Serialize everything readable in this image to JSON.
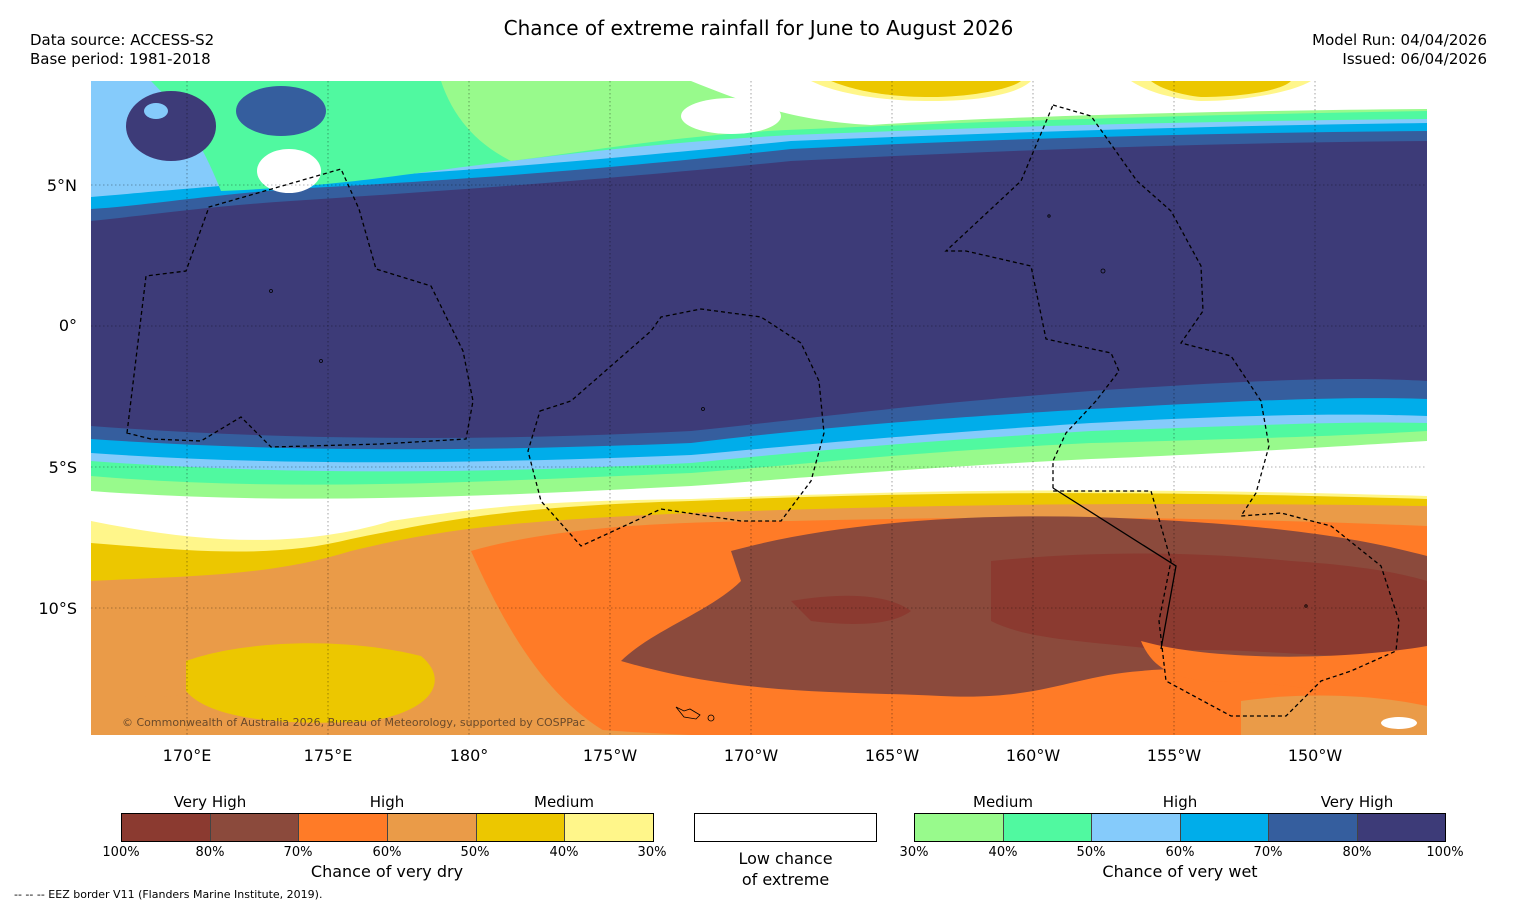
{
  "header": {
    "title": "Chance of extreme rainfall for June to August 2026",
    "data_source": "Data source: ACCESS-S2",
    "base_period": "Base period: 1981-2018",
    "model_run": "Model Run: 04/04/2026",
    "issued": "Issued: 06/04/2026"
  },
  "map": {
    "lat_labels": [
      "5°N",
      "0°",
      "5°S",
      "10°S"
    ],
    "lon_labels": [
      "170°E",
      "175°E",
      "180°",
      "175°W",
      "170°W",
      "165°W",
      "160°W",
      "155°W",
      "150°W"
    ],
    "copyright": "© Commonwealth of Australia 2026, Bureau of Meteorology, supported by COSPPac",
    "colors": {
      "dry100": "#8b3a30",
      "dry80": "#8b4a3c",
      "dry70": "#ff7b27",
      "dry60": "#ea9b48",
      "dry50": "#ecc700",
      "dry40": "#fff68a",
      "low": "#ffffff",
      "wet30": "#98fa8c",
      "wet40": "#50f9a0",
      "wet50": "#85cbfb",
      "wet60": "#00adea",
      "wet70": "#355e9e",
      "wet80": "#3d3b78"
    }
  },
  "legend": {
    "dry": {
      "headings": [
        "Very High",
        "High",
        "Medium"
      ],
      "ticks": [
        "100%",
        "80%",
        "70%",
        "60%",
        "50%",
        "40%",
        "30%"
      ],
      "caption": "Chance of very dry"
    },
    "low": {
      "line1": "Low chance",
      "line2": "of extreme"
    },
    "wet": {
      "headings": [
        "Medium",
        "High",
        "Very High"
      ],
      "ticks": [
        "30%",
        "40%",
        "50%",
        "60%",
        "70%",
        "80%",
        "100%"
      ],
      "caption": "Chance of very wet"
    }
  },
  "footnote": "--  --  -- EEZ border V11 (Flanders Marine Institute, 2019)."
}
